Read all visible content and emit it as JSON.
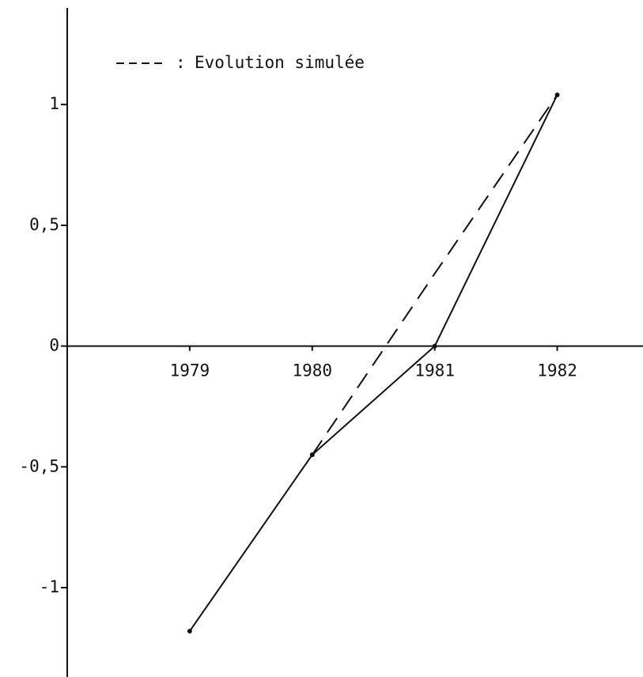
{
  "chart_data": {
    "type": "line",
    "x": [
      1979,
      1980,
      1981,
      1982
    ],
    "series": [
      {
        "color": "#111111",
        "dash": false,
        "values": [
          -1.18,
          -0.45,
          0,
          1.04
        ]
      },
      {
        "name": "Evolution simulée",
        "color": "#111111",
        "dash": true,
        "values": [
          null,
          -0.45,
          0.3,
          1.04
        ]
      }
    ],
    "legend_separator": ":",
    "xlim": [
      1978,
      1982.7
    ],
    "xticks": [
      1979,
      1980,
      1981,
      1982
    ],
    "ylim": [
      -1.37,
      1.4
    ],
    "yticks": [
      {
        "value": -1,
        "label": "-1"
      },
      {
        "value": -0.5,
        "label": "-0,5"
      },
      0,
      {
        "value": 0.5,
        "label": "0,5"
      },
      1
    ],
    "grid": false
  }
}
